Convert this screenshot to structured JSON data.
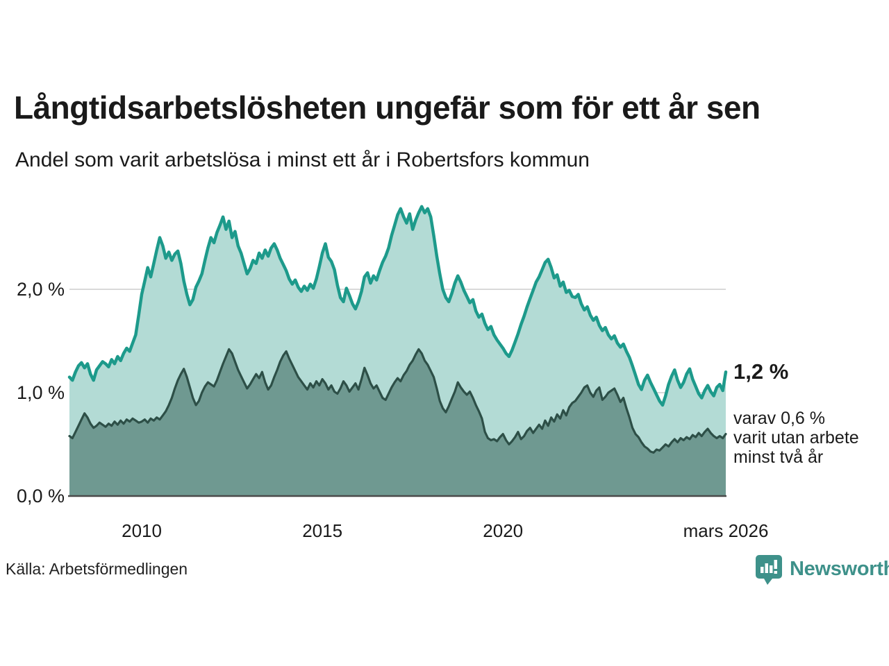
{
  "title": "Långtidsarbetslösheten ungefär som för ett år sen",
  "subtitle": "Andel som varit arbetslösa i minst ett år i Robertsfors kommun",
  "source": "Källa: Arbetsförmedlingen",
  "brand": {
    "name": "Newsworthy"
  },
  "annotations": {
    "end_value": "1,2 %",
    "sub_lines": [
      "varav 0,6 %",
      "varit utan arbete",
      "minst två år"
    ]
  },
  "colors": {
    "line_1yr": "#1d9a8b",
    "fill_1yr": "#b3dbd5",
    "line_2yr": "#2d4f47",
    "fill_2yr": "#6f9991",
    "gridline": "#d9d9d9",
    "baseline": "#4a4a4a",
    "brand_teal": "#3e918a"
  },
  "chart_data": {
    "type": "area",
    "frequency": "monthly",
    "x_start": "2008-01",
    "x_end": "2026-03",
    "x_tick_labels": [
      "2010",
      "2015",
      "2020",
      "mars 2026"
    ],
    "x_tick_indices": [
      24,
      84,
      144,
      218
    ],
    "y_tick_labels": [
      "0,0 %",
      "1,0 %",
      "2,0 %"
    ],
    "y_tick_values": [
      0.0,
      1.0,
      2.0
    ],
    "ylim": [
      0,
      2.9
    ],
    "grid": "horizontal-only",
    "legend": "none",
    "series": [
      {
        "name": "Andel arbetslösa minst ett år",
        "end_label": "1,2 %",
        "values": [
          1.15,
          1.12,
          1.2,
          1.26,
          1.29,
          1.24,
          1.28,
          1.18,
          1.12,
          1.22,
          1.26,
          1.3,
          1.28,
          1.25,
          1.32,
          1.28,
          1.35,
          1.31,
          1.38,
          1.43,
          1.4,
          1.48,
          1.56,
          1.75,
          1.95,
          2.08,
          2.21,
          2.12,
          2.25,
          2.38,
          2.5,
          2.42,
          2.3,
          2.36,
          2.28,
          2.34,
          2.37,
          2.25,
          2.08,
          1.95,
          1.85,
          1.9,
          2.02,
          2.08,
          2.15,
          2.28,
          2.4,
          2.5,
          2.45,
          2.55,
          2.62,
          2.7,
          2.58,
          2.66,
          2.5,
          2.56,
          2.42,
          2.35,
          2.25,
          2.15,
          2.2,
          2.28,
          2.25,
          2.35,
          2.3,
          2.38,
          2.32,
          2.4,
          2.44,
          2.38,
          2.3,
          2.24,
          2.18,
          2.1,
          2.05,
          2.09,
          2.02,
          1.98,
          2.03,
          1.99,
          2.05,
          2.01,
          2.1,
          2.22,
          2.35,
          2.44,
          2.31,
          2.27,
          2.19,
          2.04,
          1.92,
          1.88,
          2.01,
          1.94,
          1.86,
          1.81,
          1.88,
          1.98,
          2.12,
          2.16,
          2.06,
          2.13,
          2.09,
          2.18,
          2.26,
          2.32,
          2.4,
          2.52,
          2.62,
          2.72,
          2.78,
          2.7,
          2.64,
          2.73,
          2.58,
          2.67,
          2.74,
          2.8,
          2.74,
          2.78,
          2.7,
          2.52,
          2.32,
          2.15,
          2.0,
          1.92,
          1.88,
          1.96,
          2.06,
          2.13,
          2.07,
          1.99,
          1.93,
          1.87,
          1.9,
          1.79,
          1.73,
          1.76,
          1.67,
          1.61,
          1.64,
          1.56,
          1.51,
          1.47,
          1.43,
          1.38,
          1.35,
          1.41,
          1.49,
          1.57,
          1.66,
          1.74,
          1.83,
          1.91,
          1.99,
          2.07,
          2.12,
          2.19,
          2.26,
          2.29,
          2.21,
          2.11,
          2.14,
          2.03,
          2.07,
          1.97,
          1.99,
          1.93,
          1.92,
          1.95,
          1.86,
          1.8,
          1.83,
          1.75,
          1.7,
          1.73,
          1.65,
          1.6,
          1.63,
          1.56,
          1.52,
          1.55,
          1.48,
          1.44,
          1.47,
          1.4,
          1.34,
          1.26,
          1.17,
          1.08,
          1.03,
          1.12,
          1.17,
          1.1,
          1.04,
          0.98,
          0.92,
          0.88,
          0.97,
          1.08,
          1.16,
          1.22,
          1.12,
          1.05,
          1.1,
          1.18,
          1.23,
          1.13,
          1.06,
          0.99,
          0.95,
          1.02,
          1.07,
          1.01,
          0.97,
          1.05,
          1.08,
          1.02,
          1.2
        ]
      },
      {
        "name": "varav utan arbete minst två år",
        "end_label": "0,6 %",
        "values": [
          0.58,
          0.56,
          0.62,
          0.68,
          0.74,
          0.8,
          0.76,
          0.7,
          0.66,
          0.68,
          0.71,
          0.69,
          0.67,
          0.7,
          0.68,
          0.72,
          0.69,
          0.73,
          0.7,
          0.74,
          0.72,
          0.75,
          0.73,
          0.71,
          0.72,
          0.74,
          0.71,
          0.75,
          0.73,
          0.76,
          0.74,
          0.78,
          0.82,
          0.88,
          0.95,
          1.04,
          1.12,
          1.18,
          1.23,
          1.15,
          1.05,
          0.95,
          0.88,
          0.92,
          1.0,
          1.06,
          1.1,
          1.08,
          1.06,
          1.12,
          1.2,
          1.28,
          1.35,
          1.42,
          1.38,
          1.3,
          1.22,
          1.16,
          1.1,
          1.04,
          1.08,
          1.13,
          1.18,
          1.14,
          1.2,
          1.1,
          1.03,
          1.07,
          1.15,
          1.22,
          1.3,
          1.36,
          1.4,
          1.33,
          1.27,
          1.21,
          1.15,
          1.11,
          1.07,
          1.03,
          1.09,
          1.05,
          1.11,
          1.07,
          1.13,
          1.09,
          1.03,
          1.07,
          1.01,
          0.99,
          1.04,
          1.11,
          1.07,
          1.01,
          1.05,
          1.09,
          1.03,
          1.13,
          1.24,
          1.17,
          1.09,
          1.04,
          1.07,
          1.01,
          0.95,
          0.93,
          0.99,
          1.05,
          1.1,
          1.14,
          1.11,
          1.17,
          1.21,
          1.27,
          1.31,
          1.37,
          1.42,
          1.38,
          1.31,
          1.27,
          1.21,
          1.15,
          1.04,
          0.92,
          0.85,
          0.81,
          0.87,
          0.94,
          1.01,
          1.1,
          1.05,
          1.01,
          0.98,
          1.01,
          0.95,
          0.88,
          0.82,
          0.75,
          0.62,
          0.56,
          0.54,
          0.55,
          0.53,
          0.57,
          0.6,
          0.54,
          0.5,
          0.53,
          0.57,
          0.62,
          0.55,
          0.58,
          0.63,
          0.66,
          0.61,
          0.65,
          0.69,
          0.65,
          0.73,
          0.68,
          0.76,
          0.72,
          0.79,
          0.75,
          0.83,
          0.78,
          0.86,
          0.9,
          0.92,
          0.96,
          1.0,
          1.05,
          1.07,
          1.0,
          0.96,
          1.02,
          1.05,
          0.93,
          0.96,
          1.0,
          1.02,
          1.04,
          0.98,
          0.91,
          0.95,
          0.85,
          0.76,
          0.66,
          0.6,
          0.57,
          0.52,
          0.48,
          0.46,
          0.43,
          0.42,
          0.45,
          0.44,
          0.47,
          0.5,
          0.48,
          0.52,
          0.55,
          0.52,
          0.56,
          0.54,
          0.57,
          0.55,
          0.59,
          0.57,
          0.61,
          0.58,
          0.62,
          0.65,
          0.61,
          0.58,
          0.56,
          0.58,
          0.56,
          0.6
        ]
      }
    ]
  }
}
